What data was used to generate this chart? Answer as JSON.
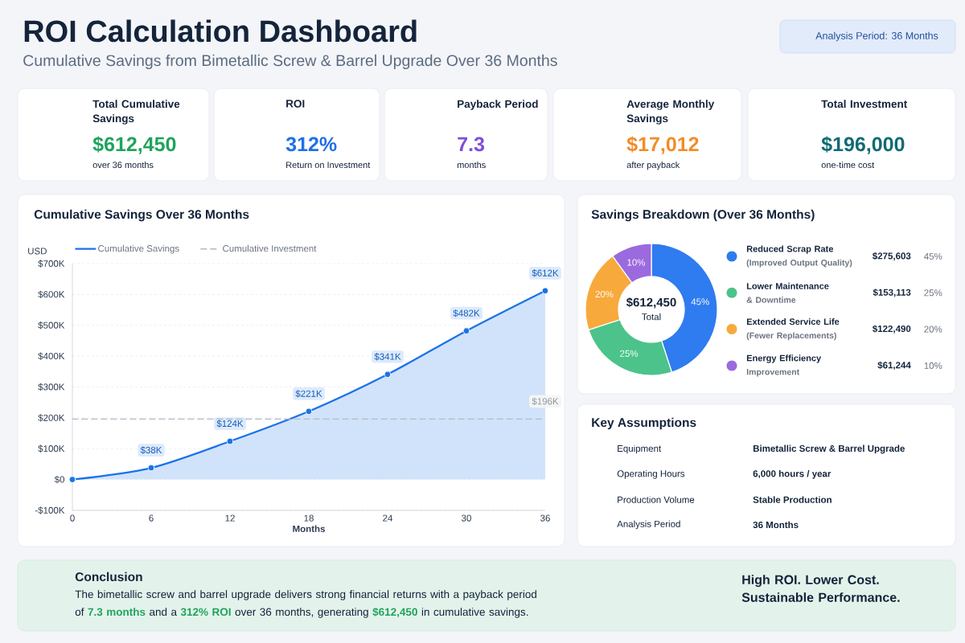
{
  "chart_data": [
    {
      "type": "other",
      "title": "ROI Calculation Dashboard",
      "subtitle": "Cumulative Savings from Bimetallic Screw & Barrel Upgrade Over 36 Months",
      "annotations": [
        "Analysis Period: 36 Months"
      ]
    },
    {
      "type": "other",
      "title": "Total Cumulative Savings",
      "annotations": [
        "$612,450",
        "over 36 months"
      ],
      "color": "#1fa35c"
    },
    {
      "type": "other",
      "title": "ROI",
      "annotations": [
        "312%",
        "Return on Investment"
      ],
      "color": "#1f6fe8"
    },
    {
      "type": "other",
      "title": "Payback Period",
      "annotations": [
        "7.3",
        "months"
      ],
      "color": "#7c4fd8"
    },
    {
      "type": "other",
      "title": "Average Monthly Savings",
      "annotations": [
        "$17,012",
        "after payback"
      ],
      "color": "#f28c28"
    },
    {
      "type": "other",
      "title": "Total Investment",
      "annotations": [
        "$196,000",
        "one-time cost"
      ],
      "color": "#0f6b75"
    },
    {
      "type": "area",
      "title": "Cumulative Savings Over 36 Months",
      "xlabel": "Months",
      "ylabel": "USD",
      "xlim": [
        0,
        36
      ],
      "xticks": [
        0,
        6,
        12,
        18,
        24,
        30,
        36
      ],
      "ylim": [
        -100000,
        700000
      ],
      "yticks": [
        {
          "value": -100000,
          "label": "-$100K"
        },
        {
          "value": 0,
          "label": "$0"
        },
        {
          "value": 100000,
          "label": "$100K"
        },
        {
          "value": 200000,
          "label": "$200K"
        },
        {
          "value": 300000,
          "label": "$300K"
        },
        {
          "value": 400000,
          "label": "$400K"
        },
        {
          "value": 500000,
          "label": "$500K"
        },
        {
          "value": 600000,
          "label": "$600K"
        },
        {
          "value": 700000,
          "label": "$700K"
        }
      ],
      "grid": "y",
      "legend": "top",
      "series": [
        {
          "name": "Cumulative Savings",
          "type": "area",
          "color": "#1a73e8",
          "marker": "circle",
          "x": [
            0,
            6,
            12,
            18,
            24,
            30,
            36
          ],
          "values": [
            0,
            38000,
            124000,
            221000,
            341000,
            482000,
            612000
          ],
          "value_labels": [
            null,
            "$38K",
            "$124K",
            "$221K",
            "$341K",
            "$482K",
            "$612K"
          ]
        },
        {
          "name": "Cumulative Investment",
          "type": "line",
          "color": "#b4bac4",
          "line_style": "dashed",
          "x": [
            0,
            36
          ],
          "values": [
            196000,
            196000
          ],
          "value_labels": [
            null,
            "$196K"
          ]
        }
      ]
    },
    {
      "type": "donut",
      "title": "Savings Breakdown (Over 36 Months)",
      "categories": [
        "Reduced Scrap Rate\n(Improved Output Quality)",
        "Lower Maintenance\n& Downtime",
        "Extended Service Life\n(Fewer Replacements)",
        "Energy Efficiency\nImprovement"
      ],
      "values": [
        275603,
        153113,
        122490,
        61244
      ],
      "colors": [
        "#2f7bf0",
        "#4cc38a",
        "#f8a93c",
        "#9b6ade"
      ],
      "value_labels": [
        "$275,603",
        "$153,113",
        "$122,490",
        "$61,244"
      ],
      "annotations": [
        "45%",
        "25%",
        "20%",
        "10%",
        "$612,450",
        "Total"
      ],
      "legend": "right"
    },
    {
      "type": "other",
      "title": "Key Assumptions",
      "annotations": [
        "Equipment",
        "Bimetallic Screw & Barrel Upgrade",
        "Operating Hours",
        "6,000 hours / year",
        "Production Volume",
        "Stable Production",
        "Analysis Period",
        "36 Months"
      ]
    },
    {
      "type": "other",
      "title": "Conclusion",
      "annotations": [
        "The bimetallic screw and barrel upgrade delivers strong financial returns with a payback period of **7.3 months** and a **312% ROI** over 36 months, generating **$612,450** in cumulative savings.",
        "High ROI. Lower Cost. Sustainable Performance."
      ],
      "color": "#1fa35c"
    }
  ]
}
